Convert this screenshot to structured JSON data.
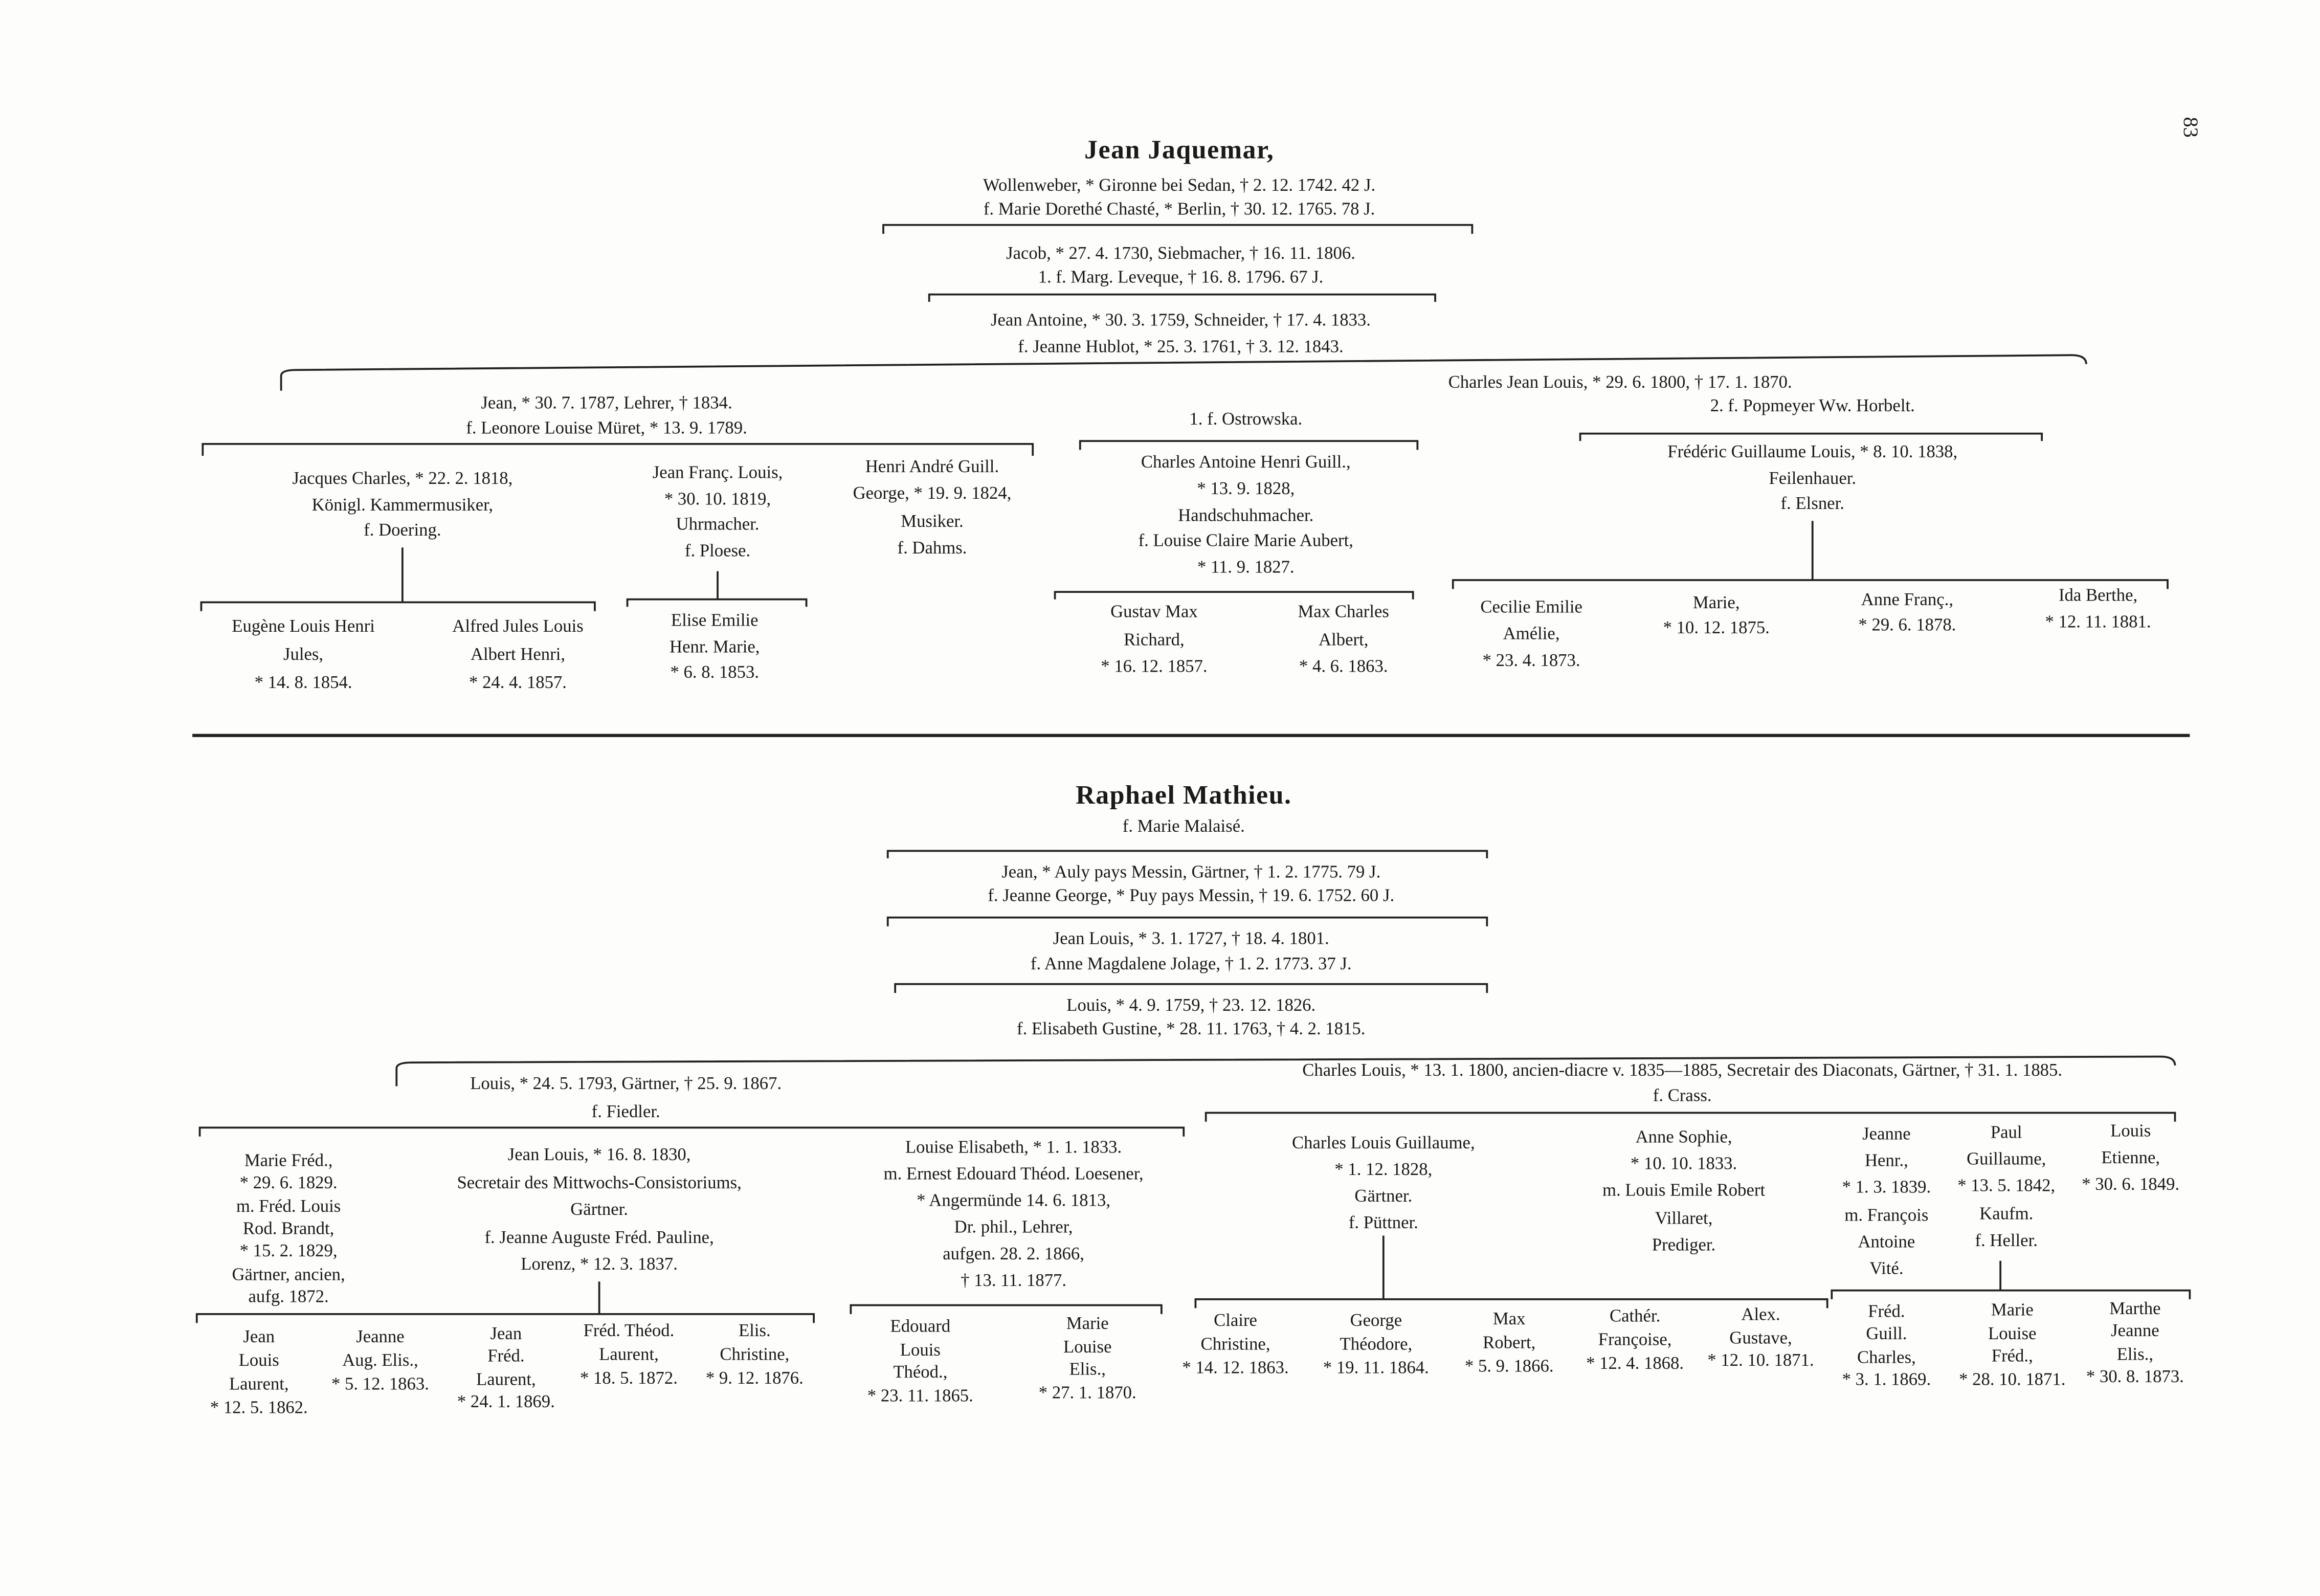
{
  "page_number": "83",
  "trees": [
    {
      "title": "Jean Jaquemar,",
      "blocks": [
        {
          "lines": [
            "Wollenweber, * Gironne bei Sedan, † 2. 12. 1742. 42 J.",
            "f. Marie Dorethé Chasté, * Berlin, † 30. 12. 1765. 78 J."
          ]
        },
        {
          "lines": [
            "Jacob, * 27. 4. 1730, Siebmacher, † 16. 11. 1806.",
            "1. f. Marg. Leveque, † 16. 8. 1796. 67 J."
          ]
        },
        {
          "lines": [
            "Jean Antoine, * 30. 3. 1759, Schneider, † 17. 4. 1833.",
            "f. Jeanne Hublot, * 25. 3. 1761, † 3. 12. 1843."
          ]
        },
        {
          "lines": [
            "Jean, * 30. 7. 1787, Lehrer, † 1834.",
            "f. Leonore Louise Müret, * 13. 9. 1789."
          ]
        },
        {
          "lines": [
            "Charles Jean Louis, * 29. 6. 1800, † 17. 1. 1870."
          ]
        },
        {
          "lines": [
            "1. f. Ostrowska."
          ]
        },
        {
          "lines": [
            "2. f. Popmeyer Ww. Horbelt."
          ]
        },
        {
          "lines": [
            "Jacques Charles, * 22. 2. 1818,",
            "Königl. Kammermusiker,",
            "f. Doering."
          ]
        },
        {
          "lines": [
            "Jean Franç. Louis,",
            "* 30. 10. 1819,",
            "Uhrmacher.",
            "f. Ploese."
          ]
        },
        {
          "lines": [
            "Henri André Guill.",
            "George, * 19. 9. 1824,",
            "Musiker.",
            "f. Dahms."
          ]
        },
        {
          "lines": [
            "Charles Antoine Henri Guill.,",
            "* 13. 9. 1828,",
            "Handschuhmacher.",
            "f. Louise Claire Marie Aubert,",
            "* 11. 9. 1827."
          ]
        },
        {
          "lines": [
            "Frédéric Guillaume Louis, * 8. 10. 1838,",
            "Feilenhauer.",
            "f. Elsner."
          ]
        },
        {
          "lines": [
            "Eugène Louis Henri",
            "Jules,",
            "* 14. 8. 1854."
          ]
        },
        {
          "lines": [
            "Alfred Jules Louis",
            "Albert Henri,",
            "* 24. 4. 1857."
          ]
        },
        {
          "lines": [
            "Elise Emilie",
            "Henr. Marie,",
            "* 6. 8. 1853."
          ]
        },
        {
          "lines": [
            "Gustav Max",
            "Richard,",
            "* 16. 12. 1857."
          ]
        },
        {
          "lines": [
            "Max Charles",
            "Albert,",
            "* 4. 6. 1863."
          ]
        },
        {
          "lines": [
            "Cecilie Emilie",
            "Amélie,",
            "* 23. 4. 1873."
          ]
        },
        {
          "lines": [
            "Marie,",
            "* 10. 12. 1875."
          ]
        },
        {
          "lines": [
            "Anne Franç.,",
            "* 29. 6. 1878."
          ]
        },
        {
          "lines": [
            "Ida Berthe,",
            "* 12. 11. 1881."
          ]
        }
      ]
    },
    {
      "title": "Raphael Mathieu.",
      "blocks": [
        {
          "lines": [
            "f. Marie Malaisé."
          ]
        },
        {
          "lines": [
            "Jean, * Auly pays Messin, Gärtner, † 1. 2. 1775. 79 J.",
            "f. Jeanne George, * Puy pays Messin, † 19. 6. 1752. 60 J."
          ]
        },
        {
          "lines": [
            "Jean Louis, * 3. 1. 1727, † 18. 4. 1801.",
            "f. Anne Magdalene Jolage, † 1. 2. 1773. 37 J."
          ]
        },
        {
          "lines": [
            "Louis, * 4. 9. 1759, † 23. 12. 1826.",
            "f. Elisabeth Gustine, * 28. 11. 1763, † 4. 2. 1815."
          ]
        },
        {
          "lines": [
            "Louis, * 24. 5. 1793, Gärtner, † 25. 9. 1867.",
            "f. Fiedler."
          ]
        },
        {
          "lines": [
            "Charles Louis, * 13. 1. 1800, ancien-diacre v. 1835—1885, Secretair des Diaconats, Gärtner, † 31. 1. 1885.",
            "f. Crass."
          ]
        },
        {
          "lines": [
            "Marie Fréd.,",
            "* 29. 6. 1829.",
            "m. Fréd. Louis",
            "Rod. Brandt,",
            "* 15. 2. 1829,",
            "Gärtner, ancien,",
            "aufg. 1872."
          ]
        },
        {
          "lines": [
            "Jean Louis, * 16. 8. 1830,",
            "Secretair des Mittwochs-Consistoriums,",
            "Gärtner.",
            "f. Jeanne Auguste Fréd. Pauline,",
            "Lorenz, * 12. 3. 1837."
          ]
        },
        {
          "lines": [
            "Louise Elisabeth, * 1. 1. 1833.",
            "m. Ernest Edouard Théod. Loesener,",
            "* Angermünde 14. 6. 1813,",
            "Dr. phil., Lehrer,",
            "aufgen. 28. 2. 1866,",
            "† 13. 11. 1877."
          ]
        },
        {
          "lines": [
            "Charles Louis Guillaume,",
            "* 1. 12. 1828,",
            "Gärtner.",
            "f. Püttner."
          ]
        },
        {
          "lines": [
            "Anne Sophie,",
            "* 10. 10. 1833.",
            "m. Louis Emile Robert",
            "Villaret,",
            "Prediger."
          ]
        },
        {
          "lines": [
            "Jeanne",
            "Henr.,",
            "* 1. 3. 1839.",
            "m. François",
            "Antoine",
            "Vité."
          ]
        },
        {
          "lines": [
            "Paul",
            "Guillaume,",
            "* 13. 5. 1842,",
            "Kaufm.",
            "f. Heller."
          ]
        },
        {
          "lines": [
            "Louis",
            "Etienne,",
            "* 30. 6. 1849."
          ]
        },
        {
          "lines": [
            "Jean",
            "Louis",
            "Laurent,",
            "* 12. 5. 1862."
          ]
        },
        {
          "lines": [
            "Jeanne",
            "Aug. Elis.,",
            "* 5. 12. 1863."
          ]
        },
        {
          "lines": [
            "Jean",
            "Fréd.",
            "Laurent,",
            "* 24. 1. 1869."
          ]
        },
        {
          "lines": [
            "Fréd. Théod.",
            "Laurent,",
            "* 18. 5. 1872."
          ]
        },
        {
          "lines": [
            "Elis.",
            "Christine,",
            "* 9. 12. 1876."
          ]
        },
        {
          "lines": [
            "Edouard",
            "Louis",
            "Théod.,",
            "* 23. 11. 1865."
          ]
        },
        {
          "lines": [
            "Marie",
            "Louise",
            "Elis.,",
            "* 27. 1. 1870."
          ]
        },
        {
          "lines": [
            "Claire",
            "Christine,",
            "* 14. 12. 1863."
          ]
        },
        {
          "lines": [
            "George",
            "Théodore,",
            "* 19. 11. 1864."
          ]
        },
        {
          "lines": [
            "Max",
            "Robert,",
            "* 5. 9. 1866."
          ]
        },
        {
          "lines": [
            "Cathér.",
            "Françoise,",
            "* 12. 4. 1868."
          ]
        },
        {
          "lines": [
            "Alex.",
            "Gustave,",
            "* 12. 10. 1871."
          ]
        },
        {
          "lines": [
            "Fréd.",
            "Guill.",
            "Charles,",
            "* 3. 1. 1869."
          ]
        },
        {
          "lines": [
            "Marie",
            "Louise",
            "Fréd.,",
            "* 28. 10. 1871."
          ]
        },
        {
          "lines": [
            "Marthe",
            "Jeanne",
            "Elis.,",
            "* 30. 8. 1873."
          ]
        }
      ]
    }
  ]
}
